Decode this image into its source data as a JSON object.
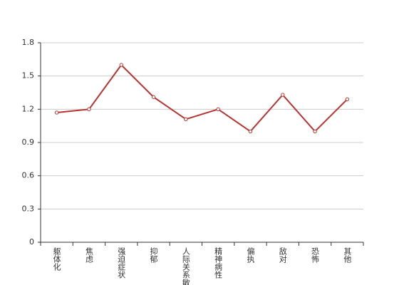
{
  "chart_data": {
    "type": "line",
    "categories": [
      "躯体化",
      "焦虑",
      "强迫症状",
      "抑郁",
      "人际关系敏感",
      "精神病性",
      "偏执",
      "敌对",
      "恐怖",
      "其他"
    ],
    "values": [
      1.17,
      1.2,
      1.6,
      1.31,
      1.11,
      1.2,
      1.0,
      1.33,
      1.0,
      1.29
    ],
    "color": "#b83330",
    "ylim": [
      0,
      1.8
    ],
    "yticks": [
      0,
      0.3,
      0.6,
      0.9,
      1.2,
      1.5,
      1.8
    ],
    "grid": true
  }
}
